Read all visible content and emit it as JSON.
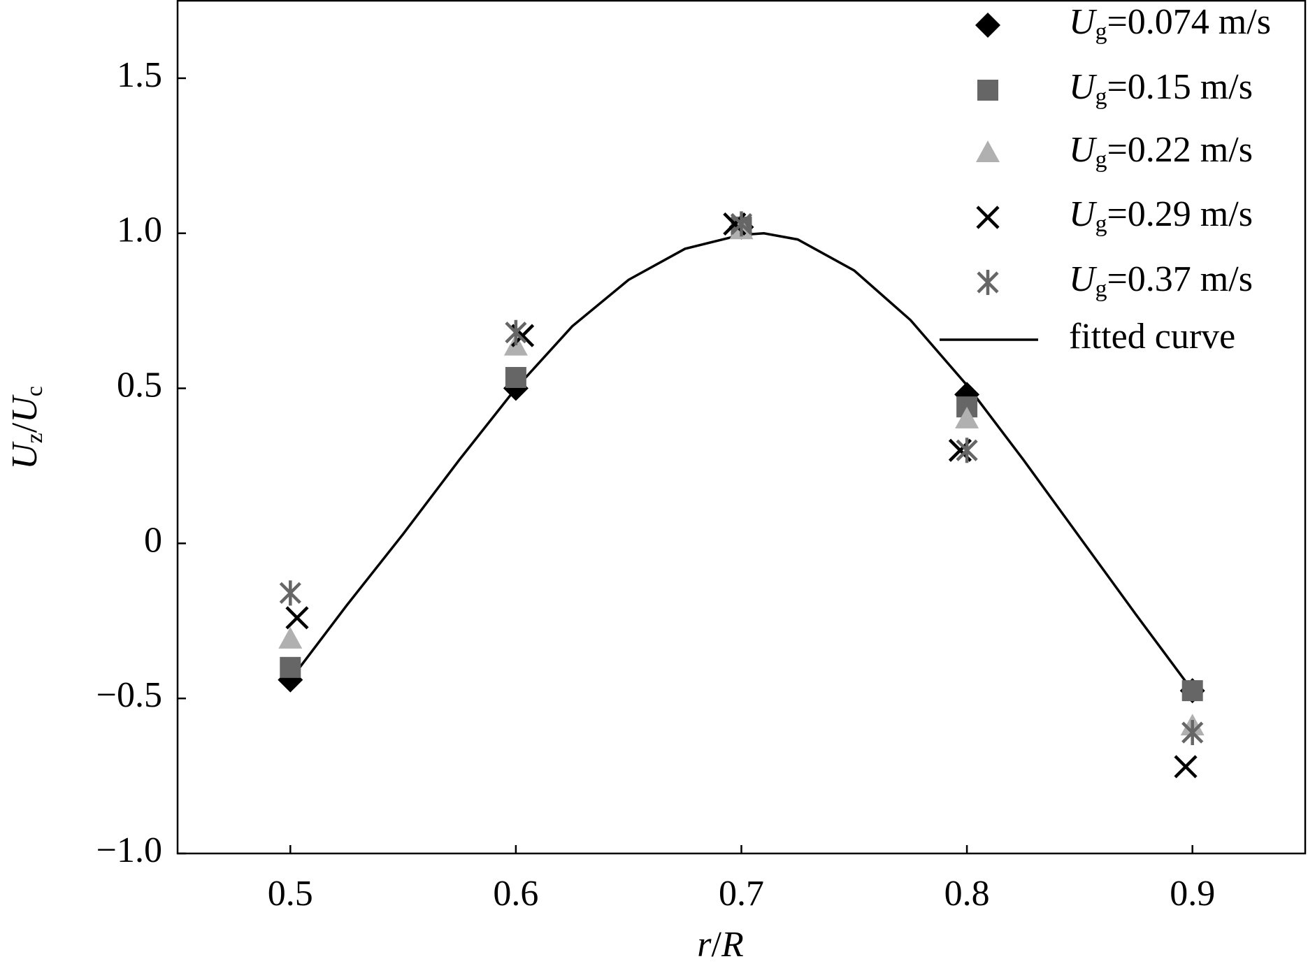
{
  "chart_data": {
    "type": "scatter",
    "x_label": "r/R",
    "y_label": "Uz/Uc",
    "xlim": [
      0.45,
      0.95
    ],
    "ylim": [
      -1.0,
      1.75
    ],
    "xticks": [
      0.5,
      0.6,
      0.7,
      0.8,
      0.9
    ],
    "yticks": [
      {
        "value": -1.0,
        "label": "−1.0"
      },
      {
        "value": -0.5,
        "label": "−0.5"
      },
      0,
      0.5,
      {
        "value": 1.0,
        "label": "1.0"
      },
      1.5
    ],
    "legend": "upper right",
    "series": [
      {
        "name": "Ug=0.074 m/s",
        "marker": "diamond",
        "color": "#000000",
        "x": [
          0.5,
          0.6,
          0.7,
          0.8,
          0.9
        ],
        "values": [
          -0.44,
          0.5,
          1.02,
          0.48,
          -0.475
        ]
      },
      {
        "name": "Ug=0.15 m/s",
        "marker": "square",
        "color": "#666666",
        "x": [
          0.5,
          0.6,
          0.7,
          0.8,
          0.9
        ],
        "values": [
          -0.4,
          0.535,
          1.02,
          0.44,
          -0.475
        ]
      },
      {
        "name": "Ug=0.22 m/s",
        "marker": "triangle",
        "color": "#b0b0b0",
        "x": [
          0.5,
          0.6,
          0.7,
          0.8,
          0.9
        ],
        "values": [
          -0.31,
          0.635,
          1.01,
          0.4,
          -0.59
        ]
      },
      {
        "name": "Ug=0.29 m/s",
        "marker": "x",
        "color": "#000000",
        "x": [
          0.503,
          0.603,
          0.697,
          0.797,
          0.897
        ],
        "values": [
          -0.24,
          0.67,
          1.03,
          0.3,
          -0.72
        ]
      },
      {
        "name": "Ug=0.37 m/s",
        "marker": "asterisk",
        "color": "#666666",
        "x": [
          0.5,
          0.6,
          0.7,
          0.8,
          0.9
        ],
        "values": [
          -0.16,
          0.68,
          1.03,
          0.3,
          -0.61
        ]
      }
    ],
    "fit": {
      "name": "fitted curve",
      "color": "#000000",
      "x": [
        0.5,
        0.525,
        0.55,
        0.575,
        0.6,
        0.625,
        0.65,
        0.675,
        0.7,
        0.71,
        0.725,
        0.75,
        0.775,
        0.8,
        0.825,
        0.85,
        0.875,
        0.9
      ],
      "values": [
        -0.44,
        -0.2,
        0.03,
        0.27,
        0.5,
        0.7,
        0.85,
        0.95,
        0.995,
        1.0,
        0.98,
        0.88,
        0.72,
        0.51,
        0.27,
        0.02,
        -0.23,
        -0.475
      ]
    }
  }
}
